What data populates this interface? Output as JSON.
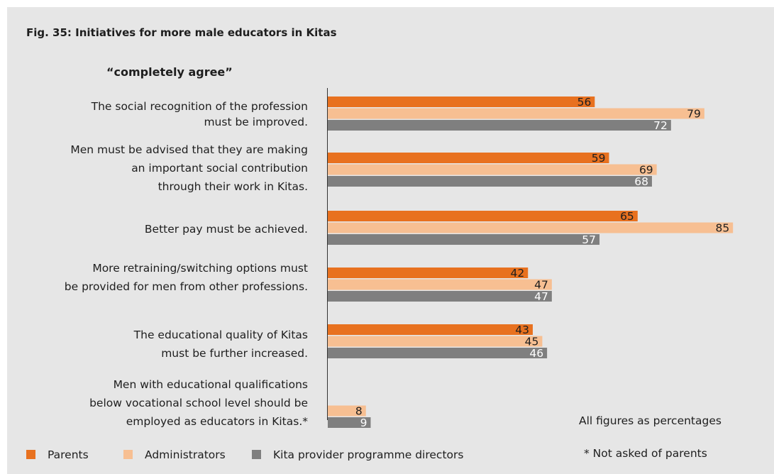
{
  "chart_data": {
    "type": "bar",
    "orientation": "horizontal",
    "title": "Fig. 35: Initiatives for more male educators in Kitas",
    "subtitle": "“completely agree”",
    "categories": [
      [
        "The social recognition of the profession",
        "must be improved."
      ],
      [
        "Men must be advised that they are making",
        "an important social contribution",
        "through their work in Kitas."
      ],
      [
        "Better pay must be achieved."
      ],
      [
        "More retraining/switching options must",
        "be provided for men from other professions."
      ],
      [
        "The educational quality of Kitas",
        "must be further increased."
      ],
      [
        "Men with educational qualifications",
        "below vocational  school level should be",
        "employed as educators in Kitas.*"
      ]
    ],
    "series": [
      {
        "name": "Parents",
        "color": "#e8711f",
        "value_color": "#1e1e1e",
        "values": [
          56,
          59,
          65,
          42,
          43,
          null
        ]
      },
      {
        "name": "Administrators",
        "color": "#f7bf92",
        "value_color": "#1e1e1e",
        "values": [
          79,
          69,
          85,
          47,
          45,
          8
        ]
      },
      {
        "name": "Kita provider programme directors",
        "color": "#7f7f7f",
        "value_color": "#ffffff",
        "values": [
          72,
          68,
          57,
          47,
          46,
          9
        ]
      }
    ],
    "xlim": [
      0,
      100
    ],
    "grid": false,
    "legend_position": "bottom",
    "notes": [
      "All figures as percentages",
      "* Not asked of parents"
    ]
  }
}
